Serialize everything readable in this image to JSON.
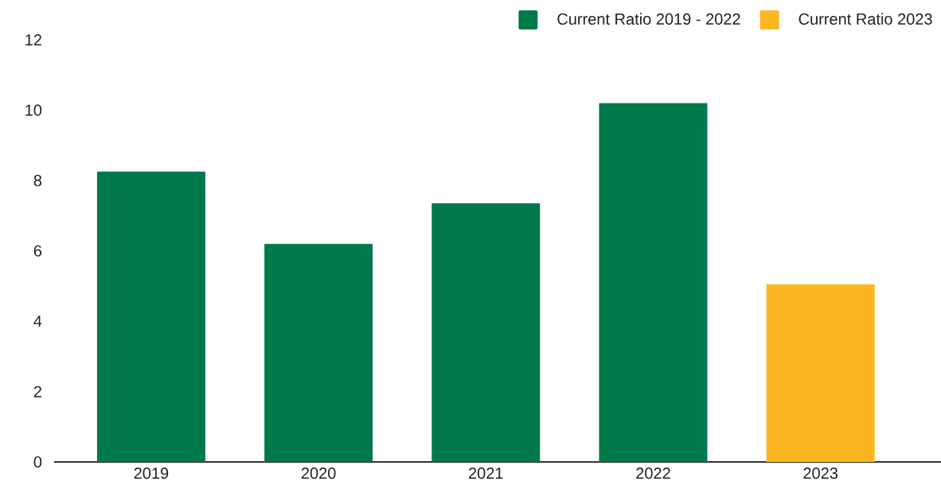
{
  "chart_data": {
    "type": "bar",
    "categories": [
      "2019",
      "2020",
      "2021",
      "2022",
      "2023"
    ],
    "series": [
      {
        "name": "Current Ratio 2019 - 2022",
        "color": "#00794a",
        "values": [
          8.25,
          6.2,
          7.35,
          10.2,
          null
        ]
      },
      {
        "name": "Current Ratio 2023",
        "color": "#fbb621",
        "values": [
          null,
          null,
          null,
          null,
          5.05
        ]
      }
    ],
    "ylim": [
      0,
      12
    ],
    "yticks": [
      0,
      2,
      4,
      6,
      8,
      10,
      12
    ],
    "grid": false,
    "legend": "top right"
  }
}
